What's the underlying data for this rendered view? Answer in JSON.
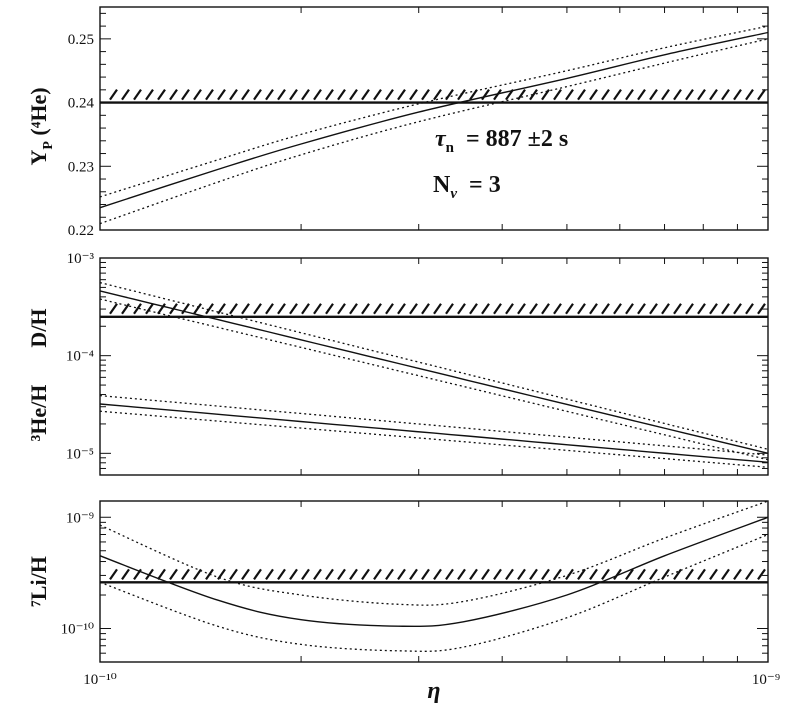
{
  "chart_data": [
    {
      "type": "line",
      "panel": "Yp",
      "ylabel": "Y",
      "ylabel_sub": "P",
      "ylabel_suffix": " (⁴He)",
      "yscale": "linear",
      "ylim": [
        0.22,
        0.255
      ],
      "yticks": [
        "0.22",
        "0.23",
        "0.24",
        "0.25"
      ],
      "xscale": "log",
      "xlim": [
        1e-10,
        1e-09
      ],
      "annotation_lines": [
        "τn = 887 ±2 s",
        "Nν = 3"
      ],
      "annotation": {
        "tau_sym": "τ",
        "tau_sub": "n",
        "tau_val": "= 887 ±2 s",
        "n_sym": "N",
        "n_sub": "ν",
        "n_val": "= 3"
      },
      "observed_bound": 0.24,
      "series": [
        {
          "style": "solid",
          "x": [
            1e-10,
            1.5e-10,
            2e-10,
            3e-10,
            5e-10,
            7e-10,
            1e-09
          ],
          "y": [
            0.2235,
            0.2295,
            0.2335,
            0.2385,
            0.2438,
            0.2475,
            0.251
          ]
        },
        {
          "style": "dotted",
          "x": [
            1e-10,
            1.5e-10,
            2e-10,
            3e-10,
            5e-10,
            7e-10,
            1e-09
          ],
          "y": [
            0.2252,
            0.231,
            0.235,
            0.2398,
            0.245,
            0.2486,
            0.252
          ]
        },
        {
          "style": "dotted",
          "x": [
            1e-10,
            1.5e-10,
            2e-10,
            3e-10,
            5e-10,
            7e-10,
            1e-09
          ],
          "y": [
            0.221,
            0.2275,
            0.2318,
            0.237,
            0.2425,
            0.2462,
            0.25
          ]
        }
      ]
    },
    {
      "type": "line",
      "panel": "D-He3",
      "ylabel_left": "³He/H",
      "ylabel_right": "D/H",
      "yscale": "log",
      "ylim": [
        6e-06,
        0.001
      ],
      "yticks": [
        "10⁻³",
        "10⁻⁴",
        "10⁻⁵"
      ],
      "xscale": "log",
      "xlim": [
        1e-10,
        1e-09
      ],
      "observed_bound": 0.00025,
      "series": [
        {
          "name": "D/H",
          "style": "solid",
          "x": [
            1e-10,
            1e-09
          ],
          "y": [
            0.00046,
            1e-05
          ]
        },
        {
          "name": "D/H",
          "style": "dotted",
          "x": [
            1e-10,
            1e-09
          ],
          "y": [
            0.00056,
            1.1e-05
          ]
        },
        {
          "name": "D/H",
          "style": "dotted",
          "x": [
            1e-10,
            1e-09
          ],
          "y": [
            0.00038,
            8.6e-06
          ]
        },
        {
          "name": "³He/H",
          "style": "solid",
          "x": [
            1e-10,
            1e-09
          ],
          "y": [
            3.2e-05,
            8.1e-06
          ]
        },
        {
          "name": "³He/H",
          "style": "dotted",
          "x": [
            1e-10,
            1e-09
          ],
          "y": [
            3.9e-05,
            9.6e-06
          ]
        },
        {
          "name": "³He/H",
          "style": "dotted",
          "x": [
            1e-10,
            1e-09
          ],
          "y": [
            2.7e-05,
            7.2e-06
          ]
        }
      ]
    },
    {
      "type": "line",
      "panel": "Li7",
      "ylabel": "⁷Li/H",
      "yscale": "log",
      "ylim": [
        5e-11,
        1.4e-09
      ],
      "yticks": [
        "10⁻⁹",
        "10⁻¹⁰"
      ],
      "xscale": "log",
      "xlim": [
        1e-10,
        1e-09
      ],
      "xticks": [
        "10⁻¹⁰",
        "10⁻⁹"
      ],
      "xlabel": "η",
      "observed_bound": 2.6e-10,
      "series": [
        {
          "style": "solid",
          "x": [
            1e-10,
            1.5e-10,
            2e-10,
            2.8e-10,
            3.5e-10,
            5e-10,
            7e-10,
            1e-09
          ],
          "y": [
            4.5e-10,
            1.8e-10,
            1.2e-10,
            1.05e-10,
            1.15e-10,
            2e-10,
            4.5e-10,
            1e-09
          ]
        },
        {
          "style": "dotted",
          "x": [
            1e-10,
            1.5e-10,
            2e-10,
            2.8e-10,
            3.5e-10,
            5e-10,
            7e-10,
            1e-09
          ],
          "y": [
            8.5e-10,
            2.9e-10,
            2e-10,
            1.65e-10,
            1.75e-10,
            3e-10,
            6.5e-10,
            1.4e-09
          ]
        },
        {
          "style": "dotted",
          "x": [
            1e-10,
            1.5e-10,
            2e-10,
            2.8e-10,
            3.5e-10,
            5e-10,
            7e-10,
            1e-09
          ],
          "y": [
            2.6e-10,
            1.05e-10,
            7.2e-11,
            6.3e-11,
            6.8e-11,
            1.25e-10,
            2.9e-10,
            7e-10
          ]
        }
      ]
    }
  ]
}
